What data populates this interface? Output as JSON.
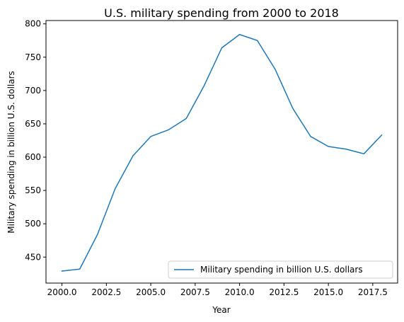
{
  "chart_data": {
    "type": "line",
    "title": "U.S. military spending from 2000 to 2018",
    "xlabel": "Year",
    "ylabel": "Military spending in billion U.S. dollars",
    "xlim": [
      1999.1,
      2018.9
    ],
    "ylim": [
      411,
      805
    ],
    "xticks": [
      2000,
      2002.5,
      2005,
      2007.5,
      2010,
      2012.5,
      2015,
      2017.5
    ],
    "xtick_labels": [
      "2000.0",
      "2002.5",
      "2005.0",
      "2007.5",
      "2010.0",
      "2012.5",
      "2015.0",
      "2017.5"
    ],
    "yticks": [
      450,
      500,
      550,
      600,
      650,
      700,
      750,
      800
    ],
    "ytick_labels": [
      "450",
      "500",
      "550",
      "600",
      "650",
      "700",
      "750",
      "800"
    ],
    "grid": false,
    "legend_position": "lower-right",
    "series": [
      {
        "name": "Military spending in billion U.S. dollars",
        "color": "#1f77b4",
        "x": [
          2000,
          2001,
          2002,
          2003,
          2004,
          2005,
          2006,
          2007,
          2008,
          2009,
          2010,
          2011,
          2012,
          2013,
          2014,
          2015,
          2016,
          2017,
          2018
        ],
        "y": [
          429,
          432,
          484,
          553,
          602,
          631,
          641,
          658,
          707,
          764,
          784,
          775,
          732,
          673,
          631,
          616,
          612,
          605,
          633
        ]
      }
    ]
  }
}
